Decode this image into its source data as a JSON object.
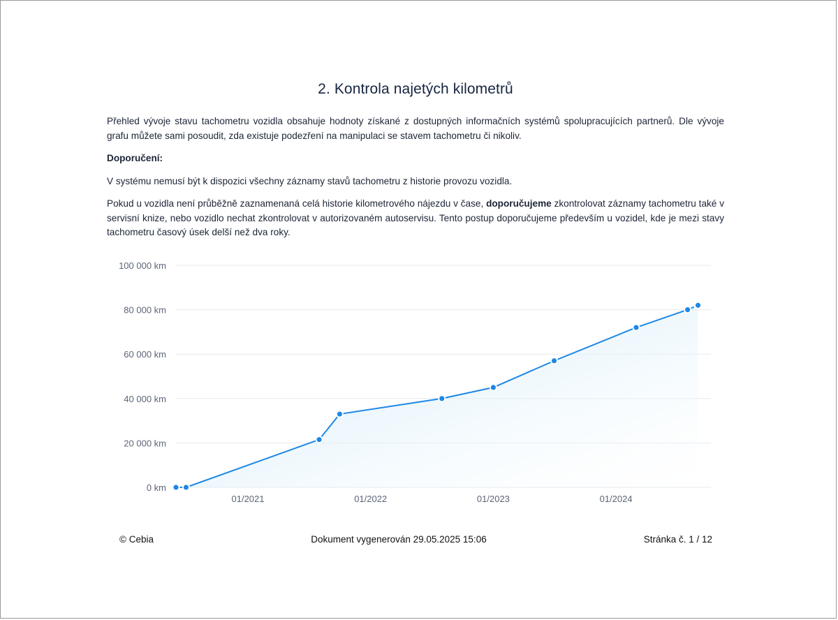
{
  "heading": "2. Kontrola najetých kilometrů",
  "intro": "Přehled vývoje stavu tachometru vozidla obsahuje hodnoty získané z dostupných informačních systémů spolupracujících partnerů. Dle vývoje grafu můžete sami posoudit, zda existuje podezření na manipulaci se stavem tachometru či nikoliv.",
  "recommendation_title": "Doporučení:",
  "recommendation_text": "V systému nemusí být k dispozici všechny záznamy stavů tachometru z historie provozu vozidla.",
  "advice": {
    "before": "Pokud u vozidla není průběžně zaznamenaná celá historie kilometrového nájezdu v čase, ",
    "bold": "doporučujeme",
    "after": " zkontrolovat záznamy tachometru také v servisní knize, nebo vozidlo nechat zkontrolovat v autorizovaném autoservisu. Tento postup doporučujeme především u vozidel, kde je mezi stavy tachometru časový úsek delší než dva roky."
  },
  "chart_data": {
    "type": "area",
    "title": "",
    "xlabel": "",
    "ylabel": "",
    "ylim": [
      0,
      100000
    ],
    "y_ticks": [
      0,
      20000,
      40000,
      60000,
      80000,
      100000
    ],
    "y_tick_labels": [
      "0 km",
      "20 000 km",
      "40 000 km",
      "60 000 km",
      "80 000 km",
      "100 000 km"
    ],
    "x_tick_labels": [
      "01/2021",
      "01/2022",
      "01/2023",
      "01/2024"
    ],
    "x_tick_dates": [
      "2021-01-01",
      "2022-01-01",
      "2023-01-01",
      "2024-01-01"
    ],
    "x_range": [
      "2020-06-01",
      "2024-10-01"
    ],
    "grid": true,
    "line_color": "#1e88e5",
    "fill_color": "#bfe3f7",
    "points": [
      {
        "x": "2020-06-01",
        "y": 0
      },
      {
        "x": "2020-07-01",
        "y": 0
      },
      {
        "x": "2021-08-01",
        "y": 21500
      },
      {
        "x": "2021-10-01",
        "y": 33000
      },
      {
        "x": "2022-08-01",
        "y": 40000
      },
      {
        "x": "2023-01-01",
        "y": 45000
      },
      {
        "x": "2023-07-01",
        "y": 57000
      },
      {
        "x": "2024-03-01",
        "y": 72000
      },
      {
        "x": "2024-08-01",
        "y": 80000
      },
      {
        "x": "2024-09-01",
        "y": 82000
      }
    ]
  },
  "footer": {
    "left": "© Cebia",
    "center": "Dokument vygenerován 29.05.2025 15:06",
    "right": "Stránka č. 1 / 12"
  }
}
